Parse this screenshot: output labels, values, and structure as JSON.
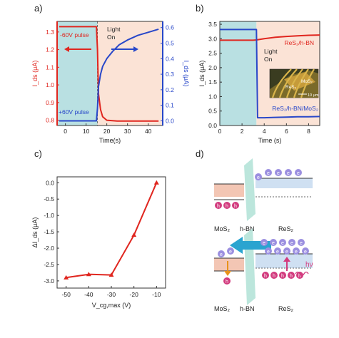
{
  "panel_labels": [
    "a)",
    "b)",
    "c)",
    "d)"
  ],
  "colors": {
    "red": "#e0261f",
    "blue": "#2847c9",
    "cyan_bg": "#b9e0e2",
    "peach_bg": "#fbe3d6",
    "hbn": "#9fdccd",
    "ball": "#9b8fe0",
    "hole": "#d23b7e"
  },
  "chart_data": [
    {
      "type": "line",
      "panel": "a)",
      "xlabel": "Time(s)",
      "ylabel_left": "I_ds (μA)",
      "ylabel_right": "I_ds (μA)",
      "xlim": [
        -4,
        47
      ],
      "xticks": [
        "0",
        "10",
        "20",
        "30",
        "40"
      ],
      "ylim_left": [
        0.77,
        1.36
      ],
      "yticks_left": [
        "0.8",
        "0.9",
        "1.0",
        "1.1",
        "1.2",
        "1.3"
      ],
      "ylim_right": [
        -0.03,
        0.64
      ],
      "yticks_right": [
        "0.0",
        "0.1",
        "0.2",
        "0.3",
        "0.4",
        "0.5",
        "0.6"
      ],
      "shaded_until_x": 15.5,
      "annotations": [
        "-60V pulse",
        "+60V pulse",
        "Light",
        "On"
      ],
      "series": [
        {
          "axis": "left",
          "color": "#e0261f",
          "x": [
            -3,
            0,
            5,
            10,
            15,
            15.5,
            16,
            17,
            18,
            20,
            25,
            30,
            35,
            40,
            45
          ],
          "y": [
            1.33,
            1.33,
            1.33,
            1.33,
            1.33,
            1.2,
            0.95,
            0.86,
            0.82,
            0.8,
            0.795,
            0.795,
            0.795,
            0.795,
            0.795
          ]
        },
        {
          "axis": "right",
          "color": "#2847c9",
          "x": [
            -3,
            0,
            5,
            10,
            15,
            15.5,
            16,
            17,
            18,
            20,
            23,
            26,
            30,
            35,
            40,
            45
          ],
          "y": [
            0.0,
            0.0,
            0.0,
            0.0,
            0.0,
            0.08,
            0.22,
            0.3,
            0.35,
            0.4,
            0.45,
            0.49,
            0.52,
            0.55,
            0.57,
            0.59
          ]
        }
      ]
    },
    {
      "type": "line",
      "panel": "b)",
      "xlabel": "Time (s)",
      "ylabel": "I_ds (μA)",
      "xlim": [
        0,
        9
      ],
      "xticks": [
        "0",
        "2",
        "4",
        "6",
        "8"
      ],
      "ylim": [
        0,
        3.6
      ],
      "yticks": [
        "0.0",
        "0.5",
        "1.0",
        "1.5",
        "2.0",
        "2.5",
        "3.0",
        "3.5"
      ],
      "shaded_until_x": 3.3,
      "annotations": [
        "Light",
        "On",
        "MoS₂",
        "ReS₂",
        "10 μm"
      ],
      "series": [
        {
          "name": "ReS₂/h-BN",
          "color": "#e0261f",
          "x": [
            0,
            1,
            2,
            3,
            3.3,
            4,
            5,
            6,
            7,
            8,
            9
          ],
          "y": [
            2.95,
            2.95,
            2.95,
            2.95,
            2.96,
            3.0,
            3.05,
            3.08,
            3.1,
            3.12,
            3.13
          ]
        },
        {
          "name": "ReS₂/h-BN/MoS₂",
          "color": "#2847c9",
          "x": [
            0,
            1,
            2,
            3,
            3.3,
            3.4,
            4,
            5,
            6,
            7,
            8,
            9
          ],
          "y": [
            3.32,
            3.32,
            3.32,
            3.32,
            3.32,
            0.27,
            0.27,
            0.28,
            0.29,
            0.3,
            0.3,
            0.31
          ]
        }
      ]
    },
    {
      "type": "line",
      "panel": "c)",
      "xlabel": "V_cg,max (V)",
      "ylabel": "ΔI_ds (μA)",
      "xlim": [
        -54,
        -6
      ],
      "xticks": [
        "-50",
        "-40",
        "-30",
        "-20",
        "-10"
      ],
      "ylim": [
        -3.22,
        0.18
      ],
      "yticks": [
        "-3.0",
        "-2.5",
        "-2.0",
        "-1.5",
        "-1.0",
        "-0.5",
        "0.0"
      ],
      "series": [
        {
          "color": "#e0261f",
          "x": [
            -50,
            -40,
            -30,
            -20,
            -10
          ],
          "y": [
            -2.9,
            -2.8,
            -2.82,
            -1.6,
            0.0
          ]
        }
      ]
    }
  ],
  "diagram_d": {
    "labels_top": [
      "MoS₂",
      "h-BN",
      "ReS₂"
    ],
    "labels_bottom": [
      "MoS₂",
      "h-BN",
      "ReS₂"
    ],
    "electron": "e",
    "hole": "h",
    "photon": "hν"
  }
}
